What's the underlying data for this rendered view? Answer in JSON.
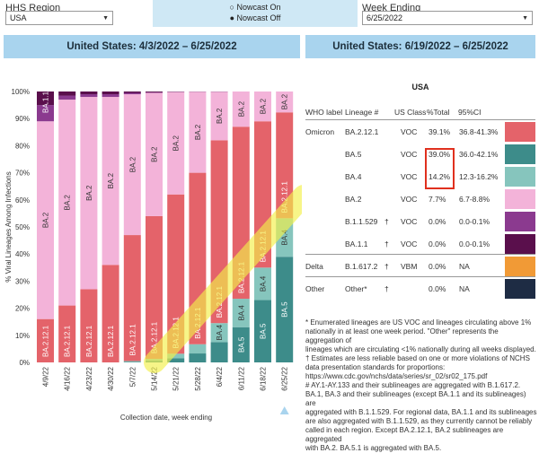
{
  "filters": {
    "region_label": "HHS Region",
    "region_value": "USA",
    "nowcast_on": "Nowcast On",
    "nowcast_off": "Nowcast Off",
    "week_label": "Week Ending",
    "week_value": "6/25/2022"
  },
  "left_banner": "United States: 4/3/2022 – 6/25/2022",
  "right_banner": "United States: 6/19/2022 – 6/25/2022",
  "chart_data": {
    "type": "bar",
    "stacked": true,
    "ylabel": "% Viral Lineages Among Infections",
    "xlabel": "Collection date, week ending",
    "ylim": [
      0,
      100
    ],
    "yticks": [
      "0%",
      "10%",
      "20%",
      "30%",
      "40%",
      "50%",
      "60%",
      "70%",
      "80%",
      "90%",
      "100%"
    ],
    "categories": [
      "4/9/22",
      "4/16/22",
      "4/23/22",
      "4/30/22",
      "5/7/22",
      "5/14/22",
      "5/21/22",
      "5/28/22",
      "6/4/22",
      "6/11/22",
      "6/18/22",
      "6/25/22"
    ],
    "series": [
      {
        "name": "BA.5",
        "color": "#3d8c8a",
        "values": [
          0,
          0,
          0,
          0,
          0.2,
          0.6,
          1.5,
          3.3,
          7.5,
          13,
          23,
          39
        ]
      },
      {
        "name": "BA.4",
        "color": "#86c5bd",
        "values": [
          0,
          0,
          0,
          0,
          0.3,
          0.7,
          1.7,
          3.4,
          7,
          10.5,
          12,
          14.2
        ]
      },
      {
        "name": "BA.2.12.1",
        "color": "#e4636a",
        "values": [
          16,
          21,
          27,
          36,
          46.5,
          52.7,
          58.8,
          63.3,
          67.5,
          63.5,
          54,
          39.1
        ]
      },
      {
        "name": "BA.2",
        "color": "#f3b3d9",
        "values": [
          73,
          76,
          71,
          62,
          52,
          45.5,
          37.8,
          29.9,
          17.9,
          13,
          11,
          7.7
        ]
      },
      {
        "name": "B.1.1.529",
        "color": "#8b3a8f",
        "values": [
          6,
          1.5,
          1,
          1,
          0.5,
          0.2,
          0.1,
          0.05,
          0.05,
          0,
          0,
          0
        ]
      },
      {
        "name": "BA.1.1",
        "color": "#5a0f4c",
        "values": [
          5,
          1.5,
          1,
          1,
          0.5,
          0.3,
          0.1,
          0.05,
          0.05,
          0,
          0,
          0
        ]
      }
    ],
    "bar_labels": [
      {
        "col": 0,
        "series": "BA.2.12.1",
        "text": "BA.2.12.1"
      },
      {
        "col": 0,
        "series": "BA.2",
        "text": "BA.2"
      },
      {
        "col": 0,
        "series": "BA.1.1",
        "text": "BA.1.1"
      },
      {
        "col": 1,
        "series": "BA.2.12.1",
        "text": "BA.2.12.1"
      },
      {
        "col": 1,
        "series": "BA.2",
        "text": "BA.2"
      },
      {
        "col": 2,
        "series": "BA.2.12.1",
        "text": "BA.2.12.1"
      },
      {
        "col": 2,
        "series": "BA.2",
        "text": "BA.2"
      },
      {
        "col": 3,
        "series": "BA.2.12.1",
        "text": "BA.2.12.1"
      },
      {
        "col": 3,
        "series": "BA.2",
        "text": "BA.2"
      },
      {
        "col": 4,
        "series": "BA.2.12.1",
        "text": "BA.2.12.1"
      },
      {
        "col": 4,
        "series": "BA.2",
        "text": "BA.2"
      },
      {
        "col": 5,
        "series": "BA.2.12.1",
        "text": "BA.2.12.1"
      },
      {
        "col": 5,
        "series": "BA.2",
        "text": "BA.2"
      },
      {
        "col": 6,
        "series": "BA.2.12.1",
        "text": "BA.2.12.1"
      },
      {
        "col": 6,
        "series": "BA.2",
        "text": "BA.2"
      },
      {
        "col": 7,
        "series": "BA.2.12.1",
        "text": "BA.2.12.1"
      },
      {
        "col": 7,
        "series": "BA.2",
        "text": "BA.2"
      },
      {
        "col": 8,
        "series": "BA.4",
        "text": "BA.4"
      },
      {
        "col": 8,
        "series": "BA.2.12.1",
        "text": "BA.2.12.1"
      },
      {
        "col": 8,
        "series": "BA.2",
        "text": "BA.2"
      },
      {
        "col": 9,
        "series": "BA.5",
        "text": "BA.5"
      },
      {
        "col": 9,
        "series": "BA.4",
        "text": "BA.4"
      },
      {
        "col": 9,
        "series": "BA.2.12.1",
        "text": "BA.2.12.1"
      },
      {
        "col": 9,
        "series": "BA.2",
        "text": "BA.2"
      },
      {
        "col": 10,
        "series": "BA.5",
        "text": "BA.5"
      },
      {
        "col": 10,
        "series": "BA.4",
        "text": "BA.4"
      },
      {
        "col": 10,
        "series": "BA.2.12.1",
        "text": "BA.2.12.1"
      },
      {
        "col": 10,
        "series": "BA.2",
        "text": "BA.2"
      },
      {
        "col": 11,
        "series": "BA.5",
        "text": "BA.5"
      },
      {
        "col": 11,
        "series": "BA.4",
        "text": "BA.4"
      },
      {
        "col": 11,
        "series": "BA.2.12.1",
        "text": "BA.2.12.1"
      },
      {
        "col": 11,
        "series": "BA.2",
        "text": "BA.2"
      }
    ],
    "highlight_color": "#f3f04a"
  },
  "table": {
    "region": "USA",
    "headers": {
      "who": "WHO label",
      "lineage": "Lineage #",
      "class": "US Class",
      "pct": "%Total",
      "ci": "95%CI"
    },
    "rows": [
      {
        "who": "Omicron",
        "lineage": "BA.2.12.1",
        "dagger": "",
        "class": "VOC",
        "pct": "39.1%",
        "ci": "36.8-41.3%",
        "color": "#e4636a"
      },
      {
        "who": "",
        "lineage": "BA.5",
        "dagger": "",
        "class": "VOC",
        "pct": "39.0%",
        "ci": "36.0-42.1%",
        "color": "#3d8c8a",
        "highlight": true
      },
      {
        "who": "",
        "lineage": "BA.4",
        "dagger": "",
        "class": "VOC",
        "pct": "14.2%",
        "ci": "12.3-16.2%",
        "color": "#86c5bd",
        "highlight": true
      },
      {
        "who": "",
        "lineage": "BA.2",
        "dagger": "",
        "class": "VOC",
        "pct": "7.7%",
        "ci": "6.7-8.8%",
        "color": "#f3b3d9"
      },
      {
        "who": "",
        "lineage": "B.1.1.529",
        "dagger": "†",
        "class": "VOC",
        "pct": "0.0%",
        "ci": "0.0-0.1%",
        "color": "#8b3a8f"
      },
      {
        "who": "",
        "lineage": "BA.1.1",
        "dagger": "†",
        "class": "VOC",
        "pct": "0.0%",
        "ci": "0.0-0.1%",
        "color": "#5a0f4c"
      },
      {
        "who": "Delta",
        "lineage": "B.1.617.2",
        "dagger": "†",
        "class": "VBM",
        "pct": "0.0%",
        "ci": "NA",
        "color": "#f19a36"
      },
      {
        "who": "Other",
        "lineage": "Other*",
        "dagger": "†",
        "class": "",
        "pct": "0.0%",
        "ci": "NA",
        "color": "#1e2c44"
      }
    ]
  },
  "notes": [
    "*     Enumerated lineages are US VOC and lineages circulating above 1%",
    "nationally in at least one week period. \"Other\" represents the aggregation of",
    "lineages which are circulating <1% nationally during all weeks displayed.",
    "†     Estimates are less reliable based on one or more violations of NCHS",
    "data presentation standards for proportions:",
    "https://www.cdc.gov/nchs/data/series/sr_02/sr02_175.pdf",
    "#     AY.1-AY.133 and their sublineages are aggregated with B.1.617.2.",
    "BA.1, BA.3 and their sublineages (except BA.1.1 and its sublineages) are",
    "aggregated with B.1.1.529. For regional data, BA.1.1 and its sublineages",
    "are also aggregated with B.1.1.529, as they currently cannot be reliably",
    "called in each region. Except BA.2.12.1, BA.2 sublineages are aggregated",
    "with BA.2. BA.5.1 is aggregated with BA.5."
  ]
}
